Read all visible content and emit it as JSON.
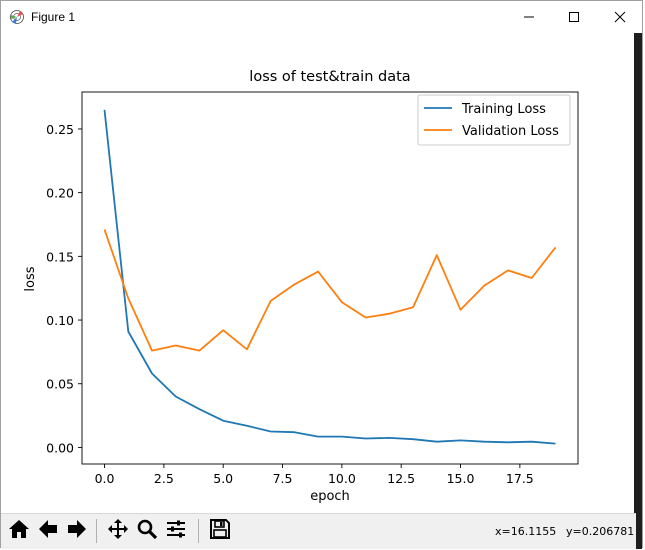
{
  "window": {
    "title": "Figure 1",
    "icons": [
      "app-icon",
      "minimize-icon",
      "maximize-icon",
      "close-icon"
    ]
  },
  "toolbar": {
    "buttons": [
      "home-icon",
      "back-icon",
      "forward-icon",
      "pan-icon",
      "zoom-icon",
      "configure-subplots-icon",
      "save-icon"
    ],
    "coord_x": "x=16.1155",
    "coord_y": "y=0.206781"
  },
  "chart_data": {
    "type": "line",
    "title": "loss of test&train data",
    "xlabel": "epoch",
    "ylabel": "loss",
    "xlim": [
      -0.95,
      19.95
    ],
    "ylim": [
      -0.013,
      0.279
    ],
    "xticks": [
      "0.0",
      "2.5",
      "5.0",
      "7.5",
      "10.0",
      "12.5",
      "15.0",
      "17.5"
    ],
    "yticks": [
      "0.00",
      "0.05",
      "0.10",
      "0.15",
      "0.20",
      "0.25"
    ],
    "grid": false,
    "legend_position": "upper-right",
    "x": [
      0,
      1,
      2,
      3,
      4,
      5,
      6,
      7,
      8,
      9,
      10,
      11,
      12,
      13,
      14,
      15,
      16,
      17,
      18,
      19
    ],
    "series": [
      {
        "name": "Training Loss",
        "color": "#1f77b4",
        "values": [
          0.265,
          0.091,
          0.058,
          0.04,
          0.03,
          0.021,
          0.017,
          0.0125,
          0.012,
          0.0085,
          0.0085,
          0.007,
          0.0075,
          0.0065,
          0.0045,
          0.0055,
          0.0045,
          0.004,
          0.0045,
          0.003
        ]
      },
      {
        "name": "Validation Loss",
        "color": "#ff7f0e",
        "values": [
          0.171,
          0.117,
          0.076,
          0.08,
          0.076,
          0.092,
          0.077,
          0.115,
          0.128,
          0.138,
          0.114,
          0.102,
          0.105,
          0.11,
          0.151,
          0.108,
          0.127,
          0.139,
          0.133,
          0.157
        ]
      }
    ]
  }
}
